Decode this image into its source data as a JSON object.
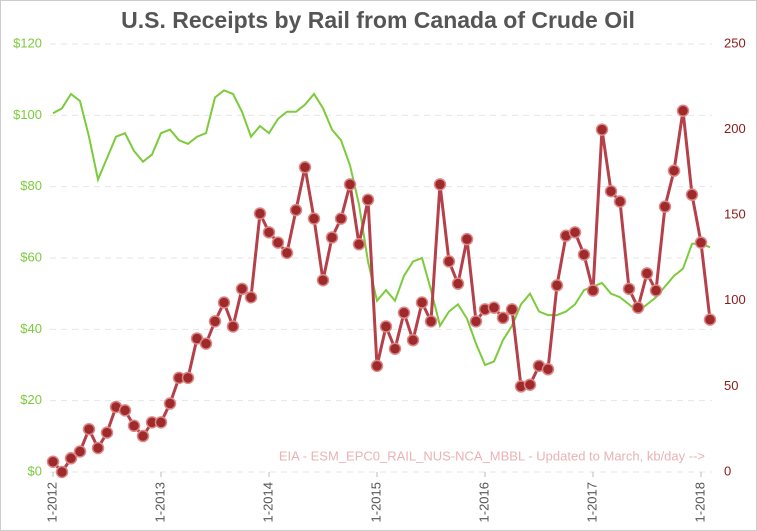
{
  "chart_data": {
    "type": "line",
    "title": "U.S. Receipts by Rail from Canada of Crude Oil",
    "annotation": "EIA - ESM_EPC0_RAIL_NUS-NCA_MBBL - Updated to March, kb/day -->",
    "x": [
      "1-2012",
      "2-2012",
      "3-2012",
      "4-2012",
      "5-2012",
      "6-2012",
      "7-2012",
      "8-2012",
      "9-2012",
      "10-2012",
      "11-2012",
      "12-2012",
      "1-2013",
      "2-2013",
      "3-2013",
      "4-2013",
      "5-2013",
      "6-2013",
      "7-2013",
      "8-2013",
      "9-2013",
      "10-2013",
      "11-2013",
      "12-2013",
      "1-2014",
      "2-2014",
      "3-2014",
      "4-2014",
      "5-2014",
      "6-2014",
      "7-2014",
      "8-2014",
      "9-2014",
      "10-2014",
      "11-2014",
      "12-2014",
      "1-2015",
      "2-2015",
      "3-2015",
      "4-2015",
      "5-2015",
      "6-2015",
      "7-2015",
      "8-2015",
      "9-2015",
      "10-2015",
      "11-2015",
      "12-2015",
      "1-2016",
      "2-2016",
      "3-2016",
      "4-2016",
      "5-2016",
      "6-2016",
      "7-2016",
      "8-2016",
      "9-2016",
      "10-2016",
      "11-2016",
      "12-2016",
      "1-2017",
      "2-2017",
      "3-2017",
      "4-2017",
      "5-2017",
      "6-2017",
      "7-2017",
      "8-2017",
      "9-2017",
      "10-2017",
      "11-2017",
      "12-2017",
      "1-2018",
      "2-2018"
    ],
    "series": [
      {
        "color": "#7ccb3c",
        "axis": "y",
        "markers": false,
        "values": [
          100.6,
          102,
          106,
          104,
          94,
          82,
          88,
          94,
          95,
          90,
          87,
          89,
          95,
          96,
          93,
          92,
          94,
          95,
          105,
          107,
          106,
          101,
          94,
          97,
          95,
          99,
          101,
          101,
          103,
          106,
          102,
          96,
          93,
          86,
          75,
          59,
          48,
          51,
          48,
          55,
          59,
          60,
          51,
          41,
          45,
          47,
          43,
          36,
          30,
          31,
          37,
          41,
          47,
          50,
          45,
          44,
          44,
          45,
          47,
          51,
          52,
          53,
          50,
          49,
          47,
          45,
          47,
          49,
          52,
          55,
          57,
          64,
          64,
          63
        ]
      },
      {
        "color": "#b5404a",
        "axis": "y2",
        "markers": true,
        "values": [
          6,
          0,
          8,
          12,
          25,
          14,
          23,
          38,
          36,
          27,
          21,
          29,
          29,
          40,
          55,
          55,
          78,
          75,
          88,
          99,
          85,
          107,
          102,
          151,
          140,
          134,
          128,
          153,
          178,
          148,
          112,
          137,
          148,
          168,
          133,
          159,
          62,
          85,
          72,
          93,
          77,
          99,
          88,
          168,
          123,
          110,
          136,
          88,
          95,
          96,
          90,
          95,
          50,
          51,
          62,
          60,
          109,
          138,
          140,
          127,
          106,
          200,
          164,
          158,
          107,
          96,
          116,
          106,
          155,
          176,
          211,
          162,
          134,
          89
        ]
      }
    ],
    "ylim": [
      0,
      120
    ],
    "yticks": [
      {
        "value": 0,
        "label": "$0"
      },
      {
        "value": 20,
        "label": "$20"
      },
      {
        "value": 40,
        "label": "$40"
      },
      {
        "value": 60,
        "label": "$60"
      },
      {
        "value": 80,
        "label": "$80"
      },
      {
        "value": 100,
        "label": "$100"
      },
      {
        "value": 120,
        "label": "$120"
      }
    ],
    "y2lim": [
      0,
      250
    ],
    "y2ticks": [
      0,
      50,
      100,
      150,
      200,
      250
    ],
    "grid": true
  }
}
